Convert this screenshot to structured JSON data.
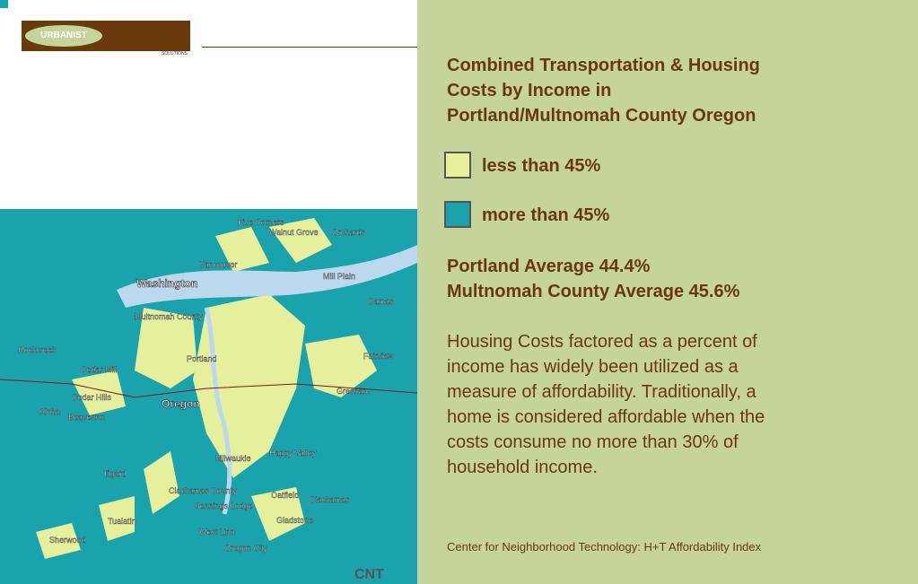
{
  "logo": {
    "name": "URBANIST",
    "sub": "SOLUTIONS"
  },
  "map": {
    "labels": [
      "Five Corners",
      "Walnut Grove",
      "Orchards",
      "Vancouver",
      "Mill Plain",
      "Washington",
      "Camas",
      "Multnomah County",
      "Rockcreek",
      "Cedar Mill",
      "Portland",
      "Fairview",
      "Cedar Hills",
      "Gresham",
      "Aloha",
      "Oregon",
      "Beaverton",
      "Milwaukie",
      "Happy Valley",
      "Tigard",
      "Clackamas County",
      "Oatfield",
      "Clackamas",
      "Jennings Lodge",
      "Gladstone",
      "Tualatin",
      "West Linn",
      "Sherwood",
      "Oregon City"
    ]
  },
  "panel": {
    "title": [
      "Combined Transportation & Housing",
      "Costs by Income in",
      "Portland/Multnomah County Oregon"
    ],
    "legend": [
      {
        "label": "less than 45%",
        "color": "#e6ef9c"
      },
      {
        "label": "more than 45%",
        "color": "#1aa3ad"
      }
    ],
    "averages": [
      "Portland Average 44.4%",
      "Multnomah County Average 45.6%"
    ],
    "body": [
      "Housing Costs factored as a percent of",
      "income has widely been utilized as a",
      "measure of affordability. Traditionally, a",
      "home is considered affordable when the",
      "costs consume no more than 30% of",
      "household income."
    ],
    "source": "Center for Neighborhood Technology: H+T Affordability Index"
  }
}
